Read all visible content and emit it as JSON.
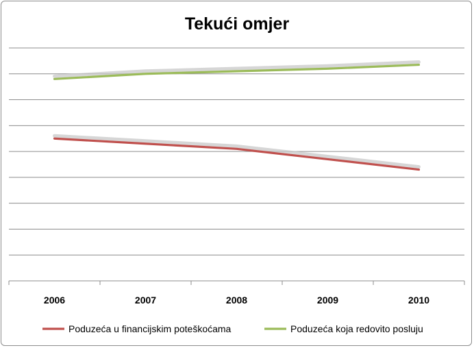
{
  "chart_data": {
    "type": "line",
    "title": "Tekući omjer",
    "xlabel": "",
    "ylabel": "",
    "categories": [
      "2006",
      "2007",
      "2008",
      "2009",
      "2010"
    ],
    "ylim": [
      0,
      9
    ],
    "grid": true,
    "y_tick_labels_visible": false,
    "legend_position": "bottom",
    "series": [
      {
        "name": "Poduzeća u financijskim poteškoćama",
        "color": "#c0504d",
        "values": [
          5.5,
          5.3,
          5.1,
          4.7,
          4.3
        ]
      },
      {
        "name": "Poduzeća koja redovito posluju",
        "color": "#9bbb59",
        "values": [
          7.8,
          8.0,
          8.1,
          8.2,
          8.35
        ]
      }
    ]
  }
}
